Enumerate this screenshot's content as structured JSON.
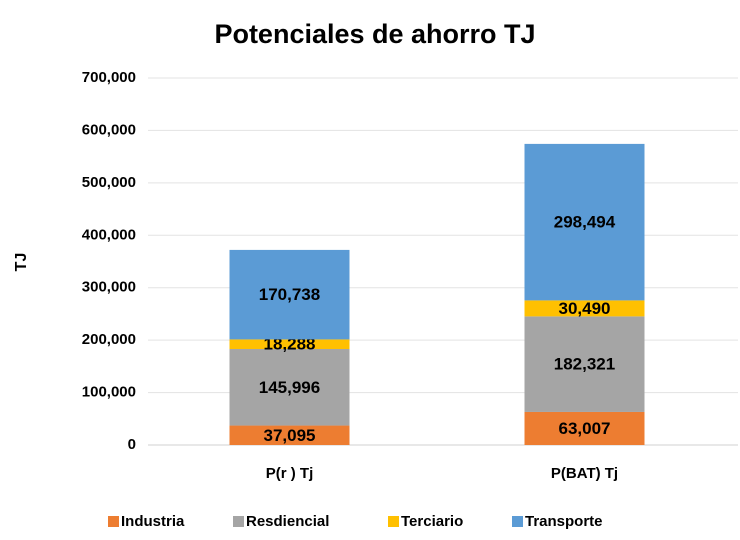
{
  "chart_data": {
    "type": "stacked_bar",
    "title": "Potenciales de ahorro TJ",
    "y_label": "TJ",
    "categories": [
      "P(r ) Tj",
      "P(BAT) Tj"
    ],
    "series": [
      {
        "name": "Industria",
        "color": "#ED7D31",
        "values": [
          37095,
          63007
        ],
        "value_labels": [
          "37,095",
          "63,007"
        ]
      },
      {
        "name": "Resdiencial",
        "color": "#A5A5A5",
        "values": [
          145996,
          182321
        ],
        "value_labels": [
          "145,996",
          "182,321"
        ]
      },
      {
        "name": "Terciario",
        "color": "#FFC000",
        "values": [
          18288,
          30490
        ],
        "value_labels": [
          "18,288",
          "30,490"
        ]
      },
      {
        "name": "Transporte",
        "color": "#5B9BD5",
        "values": [
          170738,
          298494
        ],
        "value_labels": [
          "170,738",
          "298,494"
        ]
      }
    ],
    "ylim": [
      0,
      700000
    ],
    "yticks": [
      0,
      {
        "value": 100000,
        "label": "100,000"
      },
      {
        "value": 200000,
        "label": "200,000"
      },
      {
        "value": 300000,
        "label": "300,000"
      },
      {
        "value": 400000,
        "label": "400,000"
      },
      {
        "value": 500000,
        "label": "500,000"
      },
      {
        "value": 600000,
        "label": "600,000"
      },
      {
        "value": 700000,
        "label": "700,000"
      }
    ],
    "grid": true,
    "legend": "bottom"
  }
}
